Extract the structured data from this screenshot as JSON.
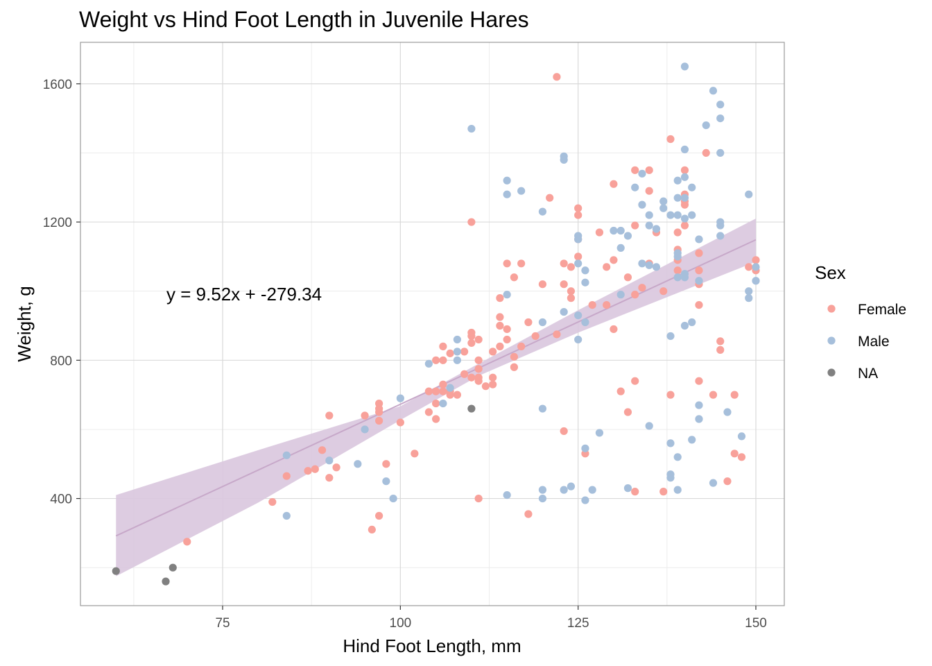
{
  "chart_data": {
    "type": "scatter",
    "title": "Weight vs Hind Foot Length in Juvenile Hares",
    "xlabel": "Hind Foot Length, mm",
    "ylabel": "Weight, g",
    "xlim": [
      55,
      154
    ],
    "ylim": [
      90,
      1720
    ],
    "x_ticks": [
      75,
      100,
      125,
      150
    ],
    "y_ticks": [
      400,
      800,
      1200,
      1600
    ],
    "grid": true,
    "legend": {
      "title": "Sex",
      "placement": "right",
      "entries": [
        {
          "label": "Female",
          "color": "#f8a19a"
        },
        {
          "label": "Male",
          "color": "#a6bfdb"
        },
        {
          "label": "NA",
          "color": "#808080"
        }
      ]
    },
    "annotation": "y = 9.52x + -279.34",
    "regression": {
      "slope": 9.52,
      "intercept": -279.34,
      "x_range": [
        60,
        150
      ],
      "band_color": "#d9c6de",
      "line_color": "#c7a8c9",
      "ci_lower": [
        [
          60,
          175
        ],
        [
          80,
          388
        ],
        [
          100,
          627
        ],
        [
          111,
          755
        ],
        [
          125,
          880
        ],
        [
          150,
          1085
        ]
      ],
      "ci_upper": [
        [
          60,
          410
        ],
        [
          80,
          540
        ],
        [
          100,
          667
        ],
        [
          111,
          790
        ],
        [
          125,
          945
        ],
        [
          150,
          1210
        ]
      ]
    },
    "series": [
      {
        "name": "Female",
        "color": "#f8a19a",
        "points": [
          [
            70,
            275
          ],
          [
            82,
            390
          ],
          [
            84,
            465
          ],
          [
            87,
            480
          ],
          [
            88,
            485
          ],
          [
            89,
            540
          ],
          [
            90,
            640
          ],
          [
            90,
            460
          ],
          [
            91,
            490
          ],
          [
            95,
            640
          ],
          [
            96,
            310
          ],
          [
            97,
            350
          ],
          [
            97,
            625
          ],
          [
            97,
            650
          ],
          [
            97,
            660
          ],
          [
            97,
            675
          ],
          [
            98,
            500
          ],
          [
            100,
            620
          ],
          [
            102,
            530
          ],
          [
            104,
            650
          ],
          [
            104,
            710
          ],
          [
            105,
            630
          ],
          [
            105,
            675
          ],
          [
            105,
            710
          ],
          [
            105,
            800
          ],
          [
            106,
            710
          ],
          [
            106,
            730
          ],
          [
            106,
            800
          ],
          [
            106,
            840
          ],
          [
            107,
            700
          ],
          [
            107,
            710
          ],
          [
            107,
            820
          ],
          [
            108,
            700
          ],
          [
            109,
            760
          ],
          [
            109,
            825
          ],
          [
            110,
            750
          ],
          [
            110,
            850
          ],
          [
            110,
            870
          ],
          [
            110,
            880
          ],
          [
            110,
            1200
          ],
          [
            111,
            400
          ],
          [
            111,
            740
          ],
          [
            111,
            750
          ],
          [
            111,
            775
          ],
          [
            111,
            800
          ],
          [
            111,
            860
          ],
          [
            112,
            725
          ],
          [
            113,
            730
          ],
          [
            113,
            750
          ],
          [
            113,
            825
          ],
          [
            114,
            840
          ],
          [
            114,
            900
          ],
          [
            114,
            925
          ],
          [
            114,
            980
          ],
          [
            115,
            860
          ],
          [
            115,
            890
          ],
          [
            115,
            1080
          ],
          [
            116,
            780
          ],
          [
            116,
            810
          ],
          [
            116,
            1040
          ],
          [
            117,
            840
          ],
          [
            117,
            1080
          ],
          [
            118,
            355
          ],
          [
            118,
            910
          ],
          [
            119,
            870
          ],
          [
            120,
            1020
          ],
          [
            121,
            1270
          ],
          [
            122,
            875
          ],
          [
            122,
            1620
          ],
          [
            123,
            595
          ],
          [
            123,
            1020
          ],
          [
            123,
            1080
          ],
          [
            124,
            980
          ],
          [
            124,
            1000
          ],
          [
            124,
            1070
          ],
          [
            125,
            1100
          ],
          [
            125,
            1150
          ],
          [
            125,
            1220
          ],
          [
            125,
            1240
          ],
          [
            126,
            530
          ],
          [
            127,
            960
          ],
          [
            128,
            1170
          ],
          [
            129,
            960
          ],
          [
            129,
            1070
          ],
          [
            130,
            890
          ],
          [
            130,
            1090
          ],
          [
            130,
            1310
          ],
          [
            131,
            710
          ],
          [
            132,
            650
          ],
          [
            132,
            1040
          ],
          [
            133,
            420
          ],
          [
            133,
            740
          ],
          [
            133,
            990
          ],
          [
            133,
            1190
          ],
          [
            133,
            1350
          ],
          [
            134,
            1010
          ],
          [
            135,
            1080
          ],
          [
            135,
            1290
          ],
          [
            135,
            1350
          ],
          [
            136,
            1170
          ],
          [
            137,
            420
          ],
          [
            137,
            1000
          ],
          [
            138,
            700
          ],
          [
            138,
            1440
          ],
          [
            139,
            1060
          ],
          [
            139,
            1090
          ],
          [
            139,
            1120
          ],
          [
            139,
            1170
          ],
          [
            140,
            1190
          ],
          [
            140,
            1250
          ],
          [
            140,
            1260
          ],
          [
            140,
            1280
          ],
          [
            140,
            1350
          ],
          [
            142,
            740
          ],
          [
            142,
            960
          ],
          [
            142,
            1020
          ],
          [
            142,
            1060
          ],
          [
            142,
            1110
          ],
          [
            143,
            1400
          ],
          [
            144,
            700
          ],
          [
            145,
            830
          ],
          [
            145,
            855
          ],
          [
            146,
            450
          ],
          [
            147,
            530
          ],
          [
            147,
            700
          ],
          [
            148,
            520
          ],
          [
            149,
            1070
          ],
          [
            150,
            1060
          ],
          [
            150,
            1090
          ]
        ]
      },
      {
        "name": "Male",
        "color": "#a6bfdb",
        "points": [
          [
            84,
            350
          ],
          [
            84,
            525
          ],
          [
            90,
            510
          ],
          [
            94,
            500
          ],
          [
            95,
            600
          ],
          [
            98,
            450
          ],
          [
            99,
            400
          ],
          [
            100,
            690
          ],
          [
            104,
            790
          ],
          [
            106,
            675
          ],
          [
            107,
            720
          ],
          [
            108,
            800
          ],
          [
            108,
            825
          ],
          [
            108,
            860
          ],
          [
            110,
            1470
          ],
          [
            115,
            410
          ],
          [
            115,
            990
          ],
          [
            115,
            1280
          ],
          [
            115,
            1320
          ],
          [
            117,
            1290
          ],
          [
            120,
            400
          ],
          [
            120,
            425
          ],
          [
            120,
            660
          ],
          [
            120,
            910
          ],
          [
            120,
            1230
          ],
          [
            123,
            425
          ],
          [
            123,
            940
          ],
          [
            123,
            1380
          ],
          [
            123,
            1390
          ],
          [
            124,
            435
          ],
          [
            125,
            860
          ],
          [
            125,
            930
          ],
          [
            125,
            1080
          ],
          [
            125,
            1150
          ],
          [
            125,
            1160
          ],
          [
            126,
            395
          ],
          [
            126,
            545
          ],
          [
            126,
            910
          ],
          [
            126,
            1025
          ],
          [
            126,
            1060
          ],
          [
            127,
            425
          ],
          [
            128,
            590
          ],
          [
            130,
            1175
          ],
          [
            131,
            990
          ],
          [
            131,
            1125
          ],
          [
            131,
            1175
          ],
          [
            132,
            430
          ],
          [
            132,
            1160
          ],
          [
            133,
            1300
          ],
          [
            134,
            1080
          ],
          [
            134,
            1250
          ],
          [
            134,
            1340
          ],
          [
            135,
            610
          ],
          [
            135,
            1075
          ],
          [
            135,
            1190
          ],
          [
            135,
            1220
          ],
          [
            136,
            1070
          ],
          [
            136,
            1180
          ],
          [
            137,
            1240
          ],
          [
            137,
            1260
          ],
          [
            138,
            460
          ],
          [
            138,
            470
          ],
          [
            138,
            560
          ],
          [
            138,
            870
          ],
          [
            138,
            1220
          ],
          [
            139,
            425
          ],
          [
            139,
            520
          ],
          [
            139,
            1040
          ],
          [
            139,
            1100
          ],
          [
            139,
            1110
          ],
          [
            139,
            1220
          ],
          [
            139,
            1270
          ],
          [
            139,
            1320
          ],
          [
            140,
            900
          ],
          [
            140,
            1040
          ],
          [
            140,
            1050
          ],
          [
            140,
            1210
          ],
          [
            140,
            1270
          ],
          [
            140,
            1330
          ],
          [
            140,
            1410
          ],
          [
            140,
            1650
          ],
          [
            141,
            570
          ],
          [
            141,
            910
          ],
          [
            141,
            1220
          ],
          [
            141,
            1300
          ],
          [
            142,
            630
          ],
          [
            142,
            670
          ],
          [
            142,
            1030
          ],
          [
            142,
            1150
          ],
          [
            143,
            1480
          ],
          [
            144,
            445
          ],
          [
            144,
            1580
          ],
          [
            145,
            1160
          ],
          [
            145,
            1190
          ],
          [
            145,
            1200
          ],
          [
            145,
            1400
          ],
          [
            145,
            1500
          ],
          [
            145,
            1540
          ],
          [
            146,
            650
          ],
          [
            148,
            580
          ],
          [
            149,
            980
          ],
          [
            149,
            1000
          ],
          [
            149,
            1280
          ],
          [
            150,
            1030
          ],
          [
            150,
            1070
          ]
        ]
      },
      {
        "name": "NA",
        "color": "#808080",
        "points": [
          [
            60,
            190
          ],
          [
            67,
            160
          ],
          [
            68,
            200
          ],
          [
            110,
            660
          ]
        ]
      }
    ]
  },
  "colors": {
    "panel_border": "#999999",
    "grid_major": "#d9d9d9",
    "grid_minor": "#ececec"
  }
}
